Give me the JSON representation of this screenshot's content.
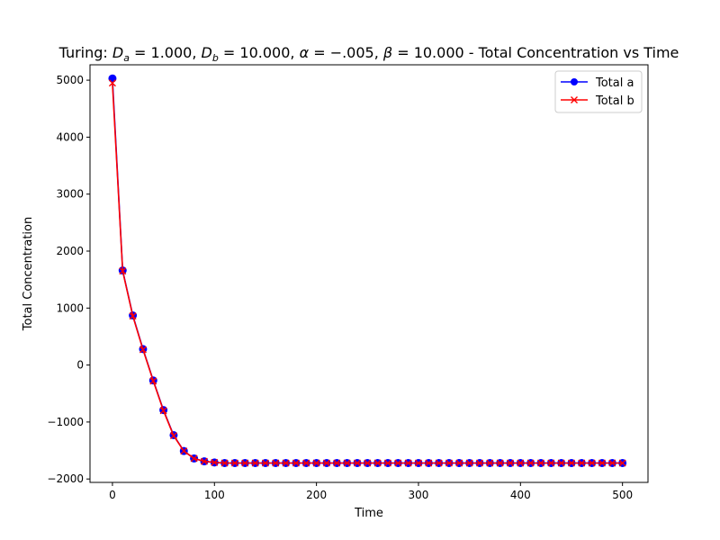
{
  "chart_data": {
    "type": "line",
    "title": "Turing: Da = 1.000, Db = 10.000, α = −.005, β = 10.000 - Total Concentration vs Time",
    "title_parts": {
      "prefix": "Turing: ",
      "da_sym": "D",
      "da_sub": "a",
      "da_val": " = 1.000, ",
      "db_sym": "D",
      "db_sub": "b",
      "db_val": " = 10.000, ",
      "alpha_sym": "α",
      "alpha_val": " = −.005, ",
      "beta_sym": "β",
      "beta_val": " = 10.000",
      "suffix": " - Total Concentration vs Time"
    },
    "xlabel": "Time",
    "ylabel": "Total Concentration",
    "xlim": [
      -22,
      525
    ],
    "ylim": [
      -2060,
      5270
    ],
    "xticks": [
      0,
      100,
      200,
      300,
      400,
      500
    ],
    "yticks": [
      -2000,
      -1000,
      0,
      1000,
      2000,
      3000,
      4000,
      5000
    ],
    "ytick_labels": [
      "−2000",
      "−1000",
      "0",
      "1000",
      "2000",
      "3000",
      "4000",
      "5000"
    ],
    "legend_position": "upper right",
    "x": [
      0,
      10,
      20,
      30,
      40,
      50,
      60,
      70,
      80,
      90,
      100,
      110,
      120,
      130,
      140,
      150,
      160,
      170,
      180,
      190,
      200,
      210,
      220,
      230,
      240,
      250,
      260,
      270,
      280,
      290,
      300,
      310,
      320,
      330,
      340,
      350,
      360,
      370,
      380,
      390,
      400,
      410,
      420,
      430,
      440,
      450,
      460,
      470,
      480,
      490,
      500
    ],
    "series": [
      {
        "name": "Total a",
        "color": "#0000ff",
        "marker": "circle",
        "values": [
          5030,
          1660,
          870,
          280,
          -270,
          -790,
          -1230,
          -1510,
          -1640,
          -1690,
          -1710,
          -1720,
          -1720,
          -1720,
          -1720,
          -1720,
          -1720,
          -1720,
          -1720,
          -1720,
          -1720,
          -1720,
          -1720,
          -1720,
          -1720,
          -1720,
          -1720,
          -1720,
          -1720,
          -1720,
          -1720,
          -1720,
          -1720,
          -1720,
          -1720,
          -1720,
          -1720,
          -1720,
          -1720,
          -1720,
          -1720,
          -1720,
          -1720,
          -1720,
          -1720,
          -1720,
          -1720,
          -1720,
          -1720,
          -1720,
          -1720
        ]
      },
      {
        "name": "Total b",
        "color": "#ff0000",
        "marker": "x",
        "values": [
          4950,
          1650,
          860,
          270,
          -280,
          -800,
          -1240,
          -1510,
          -1640,
          -1690,
          -1710,
          -1720,
          -1720,
          -1720,
          -1720,
          -1720,
          -1720,
          -1720,
          -1720,
          -1720,
          -1720,
          -1720,
          -1720,
          -1720,
          -1720,
          -1720,
          -1720,
          -1720,
          -1720,
          -1720,
          -1720,
          -1720,
          -1720,
          -1720,
          -1720,
          -1720,
          -1720,
          -1720,
          -1720,
          -1720,
          -1720,
          -1720,
          -1720,
          -1720,
          -1720,
          -1720,
          -1720,
          -1720,
          -1720,
          -1720,
          -1720
        ]
      }
    ]
  }
}
